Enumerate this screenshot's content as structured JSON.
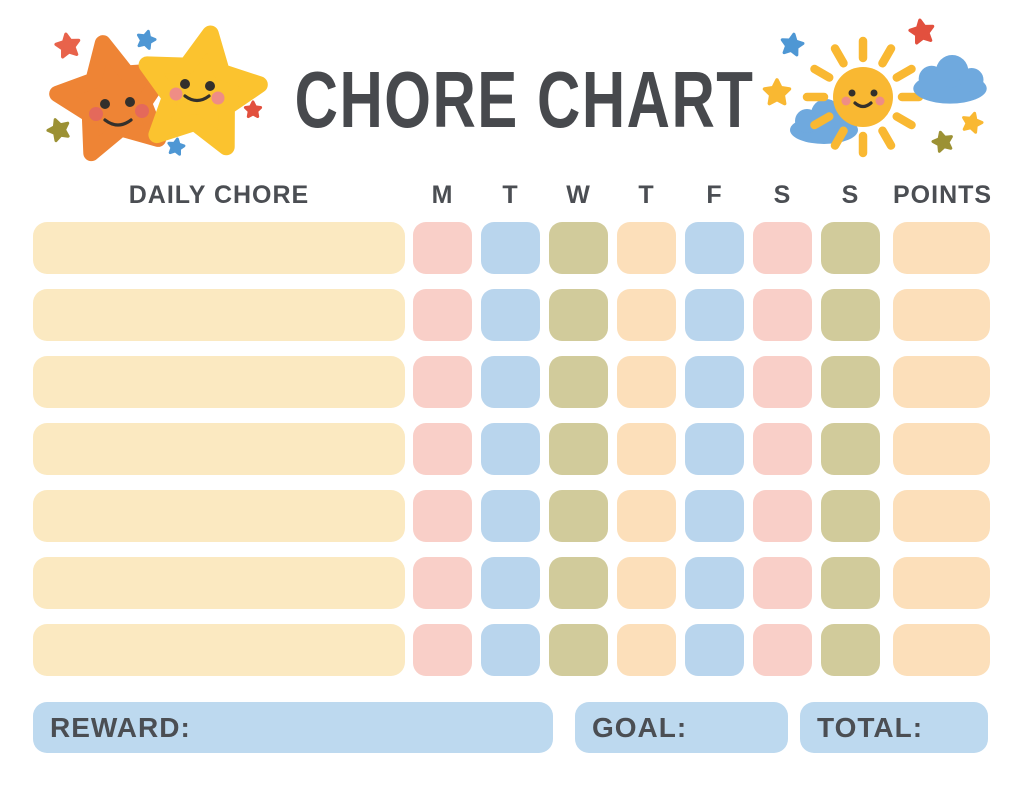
{
  "title": "CHORE CHART",
  "header": {
    "daily_chore": "DAILY CHORE",
    "days": [
      "M",
      "T",
      "W",
      "T",
      "F",
      "S",
      "S"
    ],
    "points": "POINTS"
  },
  "grid": {
    "row_count": 7,
    "chore_color": "cream",
    "day_pattern": [
      "pink",
      "blue_cell",
      "olive",
      "peach",
      "blue_cell",
      "pink",
      "olive"
    ],
    "points_color": "peach"
  },
  "footer": {
    "reward_label": "REWARD:",
    "goal_label": "GOAL:",
    "total_label": "TOTAL:"
  },
  "palette": {
    "cream": "#FBE9C1",
    "pink": "#F9CFC8",
    "blue_cell": "#B9D5ED",
    "olive": "#D1CB9B",
    "peach": "#FCDFBA",
    "footer_blue": "#BDD9EF",
    "text": "#4B4E53",
    "title": "#47494D",
    "star_orange": "#EE8435",
    "star_yellow": "#FBC32F",
    "sun_yellow": "#F9B832",
    "cloud_blue": "#6FA9DE",
    "mini_red": "#E2503E",
    "mini_red_orange": "#E8634B",
    "mini_blue": "#4E97D4",
    "mini_olive": "#9C9134",
    "face_dark": "#33302C",
    "cheek_orange": "#E4695B",
    "cheek_pink": "#EF8D85"
  },
  "icons": {
    "left_decoration": [
      "orange-star-icon",
      "yellow-star-icon",
      "mini-star-icon"
    ],
    "right_decoration": [
      "sun-icon",
      "cloud-icon",
      "mini-star-icon"
    ]
  }
}
